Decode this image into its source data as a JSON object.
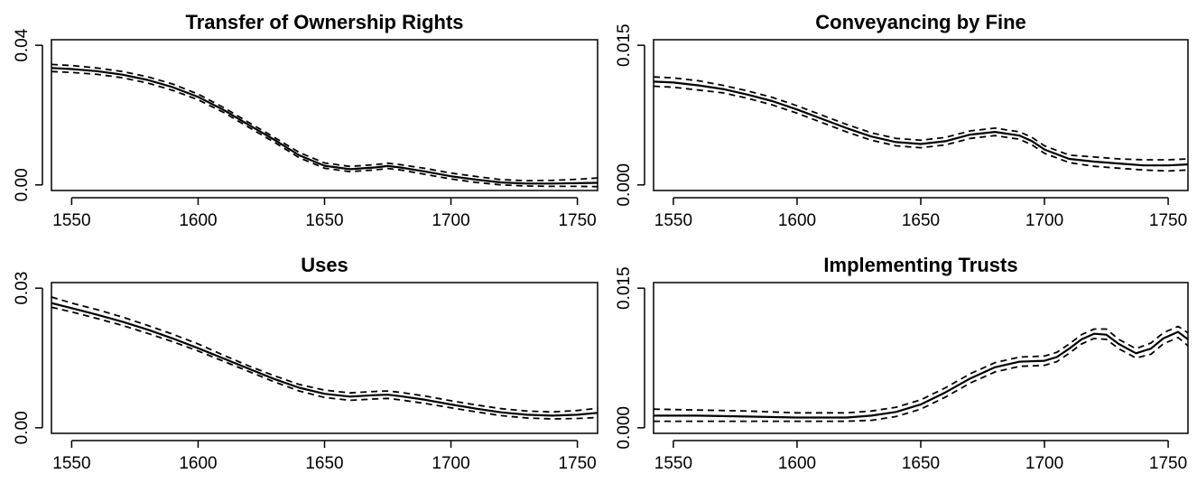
{
  "chart_data": [
    {
      "type": "line",
      "title": "Transfer of Ownership Rights",
      "xlim": [
        1542,
        1758
      ],
      "ylim": [
        0,
        0.04
      ],
      "x_ticks": [
        1550,
        1600,
        1650,
        1700,
        1750
      ],
      "y_ticks": [
        0.0,
        0.04
      ],
      "y_tick_labels": [
        "0.00",
        "0.04"
      ],
      "x": [
        1542,
        1550,
        1560,
        1570,
        1580,
        1590,
        1600,
        1610,
        1620,
        1630,
        1640,
        1650,
        1660,
        1670,
        1675,
        1680,
        1690,
        1700,
        1710,
        1720,
        1730,
        1740,
        1750,
        1758
      ],
      "series": [
        {
          "style": "solid",
          "values": [
            0.0335,
            0.0332,
            0.0326,
            0.0316,
            0.0301,
            0.028,
            0.0252,
            0.0215,
            0.0172,
            0.013,
            0.0085,
            0.0055,
            0.0045,
            0.005,
            0.0054,
            0.005,
            0.0038,
            0.0025,
            0.0015,
            0.0007,
            0.0004,
            0.0004,
            0.0005,
            0.0006
          ]
        },
        {
          "style": "dashed",
          "values": [
            0.0345,
            0.0342,
            0.0335,
            0.0325,
            0.031,
            0.0289,
            0.026,
            0.0222,
            0.0179,
            0.0137,
            0.0093,
            0.0063,
            0.0053,
            0.0058,
            0.0062,
            0.0058,
            0.0047,
            0.0034,
            0.0024,
            0.0015,
            0.0012,
            0.0013,
            0.0016,
            0.002
          ]
        },
        {
          "style": "dashed",
          "values": [
            0.0325,
            0.0322,
            0.0317,
            0.0307,
            0.0292,
            0.0271,
            0.0244,
            0.0208,
            0.0165,
            0.0123,
            0.0078,
            0.0048,
            0.0038,
            0.0043,
            0.0047,
            0.0043,
            0.003,
            0.0017,
            0.0007,
            0.0,
            -0.0003,
            -0.0004,
            -0.0004,
            -0.0005
          ]
        }
      ]
    },
    {
      "type": "line",
      "title": "Conveyancing by Fine",
      "xlim": [
        1542,
        1758
      ],
      "ylim": [
        0,
        0.015
      ],
      "x_ticks": [
        1550,
        1600,
        1650,
        1700,
        1750
      ],
      "y_ticks": [
        0.0,
        0.015
      ],
      "y_tick_labels": [
        "0.000",
        "0.015"
      ],
      "x": [
        1542,
        1550,
        1560,
        1570,
        1580,
        1590,
        1600,
        1610,
        1620,
        1630,
        1640,
        1650,
        1660,
        1670,
        1680,
        1690,
        1695,
        1700,
        1710,
        1720,
        1730,
        1740,
        1750,
        1758
      ],
      "series": [
        {
          "style": "solid",
          "values": [
            0.0111,
            0.011,
            0.0107,
            0.0103,
            0.0097,
            0.009,
            0.0081,
            0.0071,
            0.0061,
            0.0052,
            0.0046,
            0.0044,
            0.0047,
            0.0054,
            0.0057,
            0.0053,
            0.0047,
            0.0038,
            0.0028,
            0.0025,
            0.0023,
            0.0021,
            0.0021,
            0.0022
          ]
        },
        {
          "style": "dashed",
          "values": [
            0.0116,
            0.0115,
            0.0112,
            0.0107,
            0.0101,
            0.0094,
            0.0085,
            0.0075,
            0.0065,
            0.0056,
            0.005,
            0.0048,
            0.0051,
            0.0058,
            0.0061,
            0.0057,
            0.0051,
            0.0042,
            0.0032,
            0.003,
            0.0028,
            0.0027,
            0.0027,
            0.0028
          ]
        },
        {
          "style": "dashed",
          "values": [
            0.0106,
            0.0105,
            0.0102,
            0.0099,
            0.0093,
            0.0086,
            0.0077,
            0.0067,
            0.0057,
            0.0048,
            0.0042,
            0.004,
            0.0043,
            0.005,
            0.0053,
            0.0049,
            0.0043,
            0.0034,
            0.0024,
            0.002,
            0.0018,
            0.0016,
            0.0015,
            0.0016
          ]
        }
      ]
    },
    {
      "type": "line",
      "title": "Uses",
      "xlim": [
        1542,
        1758
      ],
      "ylim": [
        0,
        0.03
      ],
      "x_ticks": [
        1550,
        1600,
        1650,
        1700,
        1750
      ],
      "y_ticks": [
        0.0,
        0.03
      ],
      "y_tick_labels": [
        "0.00",
        "0.03"
      ],
      "x": [
        1542,
        1550,
        1560,
        1570,
        1580,
        1590,
        1600,
        1610,
        1620,
        1630,
        1640,
        1650,
        1660,
        1670,
        1675,
        1680,
        1690,
        1700,
        1710,
        1720,
        1730,
        1740,
        1750,
        1758
      ],
      "series": [
        {
          "style": "solid",
          "values": [
            0.0268,
            0.0257,
            0.0243,
            0.0228,
            0.0211,
            0.0192,
            0.0171,
            0.0149,
            0.0127,
            0.0105,
            0.0086,
            0.0073,
            0.0067,
            0.007,
            0.0071,
            0.0068,
            0.006,
            0.005,
            0.0041,
            0.0033,
            0.0028,
            0.0026,
            0.0028,
            0.0032
          ]
        },
        {
          "style": "dashed",
          "values": [
            0.0281,
            0.0268,
            0.0254,
            0.0238,
            0.022,
            0.0201,
            0.018,
            0.0156,
            0.0133,
            0.0112,
            0.0093,
            0.0081,
            0.0075,
            0.0078,
            0.0079,
            0.0076,
            0.0068,
            0.0058,
            0.0049,
            0.0041,
            0.0036,
            0.0034,
            0.0037,
            0.0042
          ]
        },
        {
          "style": "dashed",
          "values": [
            0.0259,
            0.0249,
            0.0235,
            0.022,
            0.0203,
            0.0185,
            0.0165,
            0.0143,
            0.0121,
            0.0099,
            0.0079,
            0.0065,
            0.0059,
            0.0062,
            0.0063,
            0.006,
            0.0052,
            0.0043,
            0.0034,
            0.0026,
            0.0021,
            0.0019,
            0.002,
            0.0022
          ]
        }
      ]
    },
    {
      "type": "line",
      "title": "Implementing Trusts",
      "xlim": [
        1542,
        1758
      ],
      "ylim": [
        0,
        0.015
      ],
      "x_ticks": [
        1550,
        1600,
        1650,
        1700,
        1750
      ],
      "y_ticks": [
        0.0,
        0.015
      ],
      "y_tick_labels": [
        "0.000",
        "0.015"
      ],
      "x": [
        1542,
        1560,
        1580,
        1600,
        1620,
        1630,
        1640,
        1650,
        1660,
        1670,
        1680,
        1690,
        1700,
        1705,
        1710,
        1715,
        1720,
        1725,
        1730,
        1737,
        1743,
        1748,
        1754,
        1758
      ],
      "series": [
        {
          "style": "solid",
          "values": [
            0.0013,
            0.0013,
            0.0012,
            0.0011,
            0.0011,
            0.0013,
            0.0017,
            0.0025,
            0.0038,
            0.0053,
            0.0065,
            0.0071,
            0.0072,
            0.0076,
            0.0085,
            0.0095,
            0.0101,
            0.01,
            0.009,
            0.008,
            0.0085,
            0.0096,
            0.0103,
            0.0095
          ]
        },
        {
          "style": "dashed",
          "values": [
            0.002,
            0.0019,
            0.0018,
            0.0016,
            0.0016,
            0.0018,
            0.0022,
            0.003,
            0.0043,
            0.0058,
            0.007,
            0.0076,
            0.0077,
            0.0081,
            0.009,
            0.01,
            0.0106,
            0.0106,
            0.0095,
            0.0085,
            0.0091,
            0.0102,
            0.0109,
            0.0102
          ]
        },
        {
          "style": "dashed",
          "values": [
            0.0007,
            0.0007,
            0.0007,
            0.0007,
            0.0007,
            0.0008,
            0.0012,
            0.002,
            0.0033,
            0.0048,
            0.006,
            0.0066,
            0.0067,
            0.0071,
            0.008,
            0.009,
            0.0096,
            0.0095,
            0.0085,
            0.0075,
            0.0079,
            0.009,
            0.0097,
            0.0088
          ]
        }
      ]
    }
  ]
}
